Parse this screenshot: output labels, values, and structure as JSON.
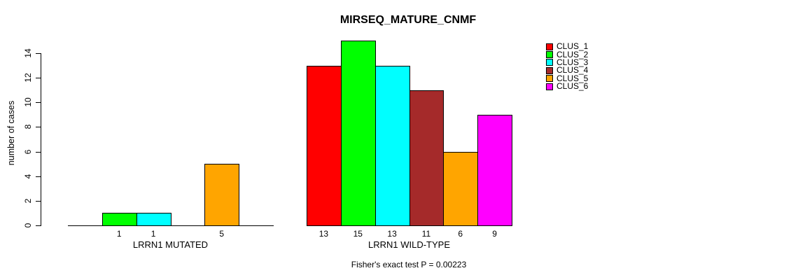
{
  "chart_data": {
    "type": "bar",
    "title": "MIRSEQ_MATURE_CNMF",
    "ylabel": "number of cases",
    "xlabel": "",
    "ylim": [
      0,
      15
    ],
    "yticks": [
      0,
      2,
      4,
      6,
      8,
      10,
      12,
      14
    ],
    "grid": false,
    "legend_position": "right",
    "series": [
      {
        "name": "CLUS_1",
        "color": "#FF0000"
      },
      {
        "name": "CLUS_2",
        "color": "#00FF00"
      },
      {
        "name": "CLUS_3",
        "color": "#00FFFF"
      },
      {
        "name": "CLUS_4",
        "color": "#A52A2A"
      },
      {
        "name": "CLUS_5",
        "color": "#FFA500"
      },
      {
        "name": "CLUS_6",
        "color": "#FF00FF"
      }
    ],
    "groups": [
      {
        "label": "LRRN1 MUTATED",
        "values": [
          0,
          1,
          1,
          0,
          5,
          0
        ],
        "bar_labels": [
          "",
          "1",
          "1",
          "",
          "5",
          ""
        ]
      },
      {
        "label": "LRRN1 WILD-TYPE",
        "values": [
          13,
          15,
          13,
          11,
          6,
          9
        ],
        "bar_labels": [
          "13",
          "15",
          "13",
          "11",
          "6",
          "9"
        ]
      }
    ],
    "annotation": "Fisher's exact test P = 0.00223"
  }
}
